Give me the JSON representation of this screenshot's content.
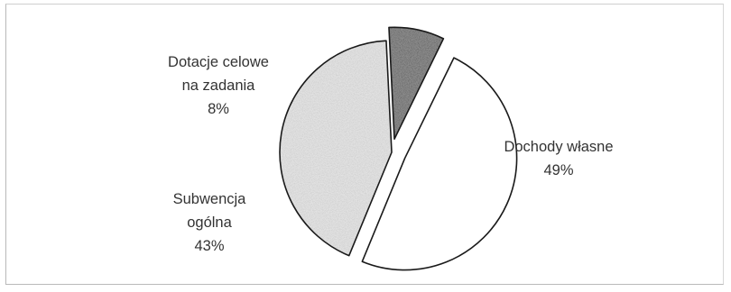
{
  "chart_data": {
    "type": "pie",
    "slices": [
      {
        "label_lines": [
          "Dochody własne",
          "49%"
        ],
        "value": 49,
        "color": "#ffffff"
      },
      {
        "label_lines": [
          "Subwencja",
          "ogólna",
          "43%"
        ],
        "value": 43,
        "color": "#e2e2e2"
      },
      {
        "label_lines": [
          "Dotacje celowe",
          "na zadania",
          "8%"
        ],
        "value": 8,
        "color": "#8c8c8c"
      }
    ],
    "legend": "none"
  }
}
